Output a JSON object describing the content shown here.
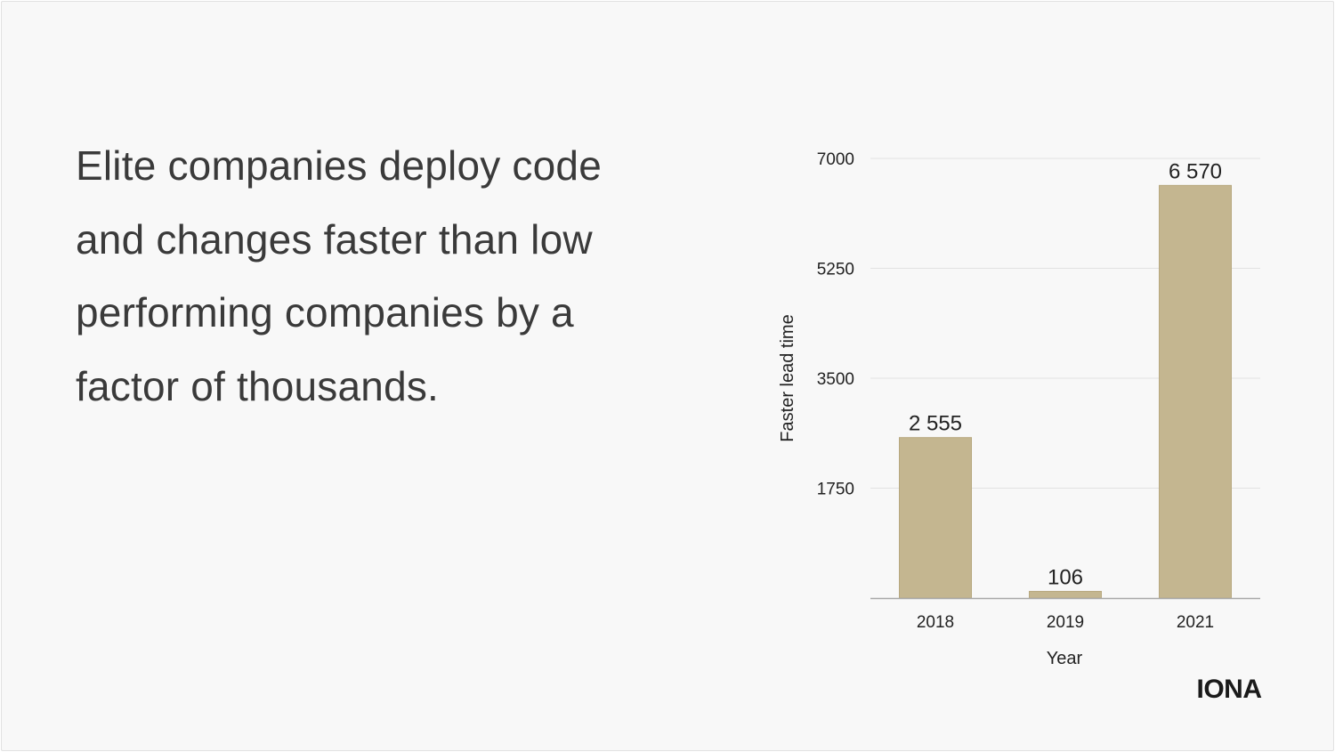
{
  "slide": {
    "headline": "Elite companies deploy code and changes faster than low performing companies by a factor of thousands.",
    "logo": "IONA"
  },
  "colors": {
    "background": "#f8f8f8",
    "bar": "#c4b690",
    "grid": "#e2e2e2",
    "axis": "#a8a8a8",
    "text": "#3a3a3a"
  },
  "chart_data": {
    "type": "bar",
    "title": "",
    "xlabel": "Year",
    "ylabel": "Faster lead time",
    "categories": [
      "2018",
      "2019",
      "2021"
    ],
    "values": [
      2555,
      106,
      6570
    ],
    "data_labels": [
      "2 555",
      "106",
      "6 570"
    ],
    "ylim": [
      0,
      7000
    ],
    "yticks": [
      1750,
      3500,
      5250,
      7000
    ],
    "ytick_labels": [
      "1750",
      "3500",
      "5250",
      "7000"
    ],
    "grid": true,
    "legend": "none"
  }
}
